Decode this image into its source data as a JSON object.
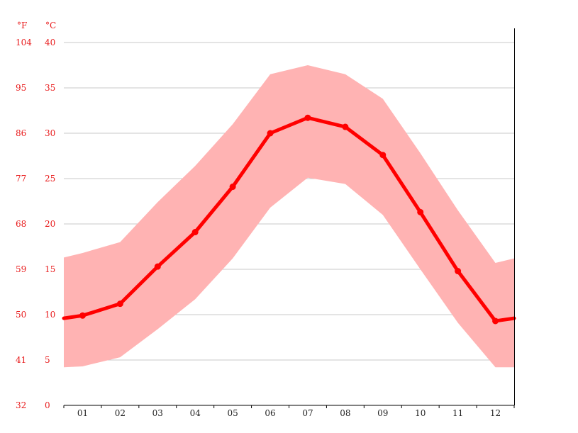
{
  "chart_data": {
    "type": "line",
    "units": {
      "fahrenheit": "°F",
      "celsius": "°C"
    },
    "categories": [
      "01",
      "02",
      "03",
      "04",
      "05",
      "06",
      "07",
      "08",
      "09",
      "10",
      "11",
      "12"
    ],
    "series": [
      {
        "values": [
          9.9,
          11.2,
          15.3,
          19.1,
          24.1,
          30.0,
          31.7,
          30.7,
          27.6,
          21.3,
          14.8,
          9.3
        ]
      }
    ],
    "bands": [
      {
        "low": [
          4.3,
          5.3,
          8.4,
          11.7,
          16.2,
          21.8,
          25.1,
          24.4,
          21.0,
          15.0,
          9.1,
          4.2
        ],
        "high": [
          16.8,
          18.0,
          22.4,
          26.4,
          31.0,
          36.5,
          37.5,
          36.5,
          33.8,
          27.8,
          21.5,
          15.7
        ]
      }
    ],
    "edge_values": {
      "left": 9.6,
      "right": 9.6,
      "low_left": 4.2,
      "low_right": 4.2,
      "high_left": 16.3,
      "high_right": 16.2
    },
    "yaxis_celsius": {
      "ticks": [
        0,
        5,
        10,
        15,
        20,
        25,
        30,
        35,
        40
      ],
      "labels": [
        "0",
        "5",
        "10",
        "15",
        "20",
        "25",
        "30",
        "35",
        "40"
      ]
    },
    "yaxis_fahrenheit": {
      "labels": [
        "32",
        "41",
        "50",
        "59",
        "68",
        "77",
        "86",
        "95",
        "104"
      ]
    },
    "ylim": [
      0,
      40
    ],
    "grid": true,
    "colors": {
      "line": "#ff0000",
      "band": "#ffb3b3",
      "grid": "#c8c8c8",
      "axis_text": "#e8191a",
      "x_text": "#222222",
      "axis": "#000000"
    }
  }
}
